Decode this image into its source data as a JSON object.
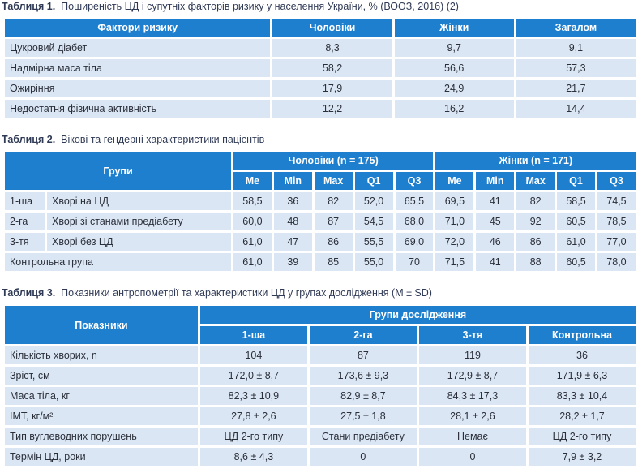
{
  "table1": {
    "caption_prefix": "Таблиця 1.",
    "caption": "Поширеність ЦД і супутніх факторів ризику у населення України, % (ВООЗ, 2016) (2)",
    "headers": [
      "Фактори ризику",
      "Чоловіки",
      "Жінки",
      "Загалом"
    ],
    "rows": [
      [
        "Цукровий діабет",
        "8,3",
        "9,7",
        "9,1"
      ],
      [
        "Надмірна маса тіла",
        "58,2",
        "56,6",
        "57,3"
      ],
      [
        "Ожиріння",
        "17,9",
        "24,9",
        "21,7"
      ],
      [
        "Недостатня фізична активність",
        "12,2",
        "16,2",
        "14,4"
      ]
    ]
  },
  "table2": {
    "caption_prefix": "Таблиця 2.",
    "caption": "Вікові та гендерні характеристики пацієнтів",
    "group_header": "Групи",
    "men_header": "Чоловіки (n = 175)",
    "women_header": "Жінки (n = 171)",
    "sub_headers": [
      "Me",
      "Min",
      "Max",
      "Q1",
      "Q3",
      "Me",
      "Min",
      "Max",
      "Q1",
      "Q3"
    ],
    "rows": [
      {
        "num": "1-ша",
        "name": "Хворі на ЦД",
        "values": [
          "58,5",
          "36",
          "82",
          "52,0",
          "65,5",
          "69,5",
          "41",
          "82",
          "58,5",
          "74,5"
        ]
      },
      {
        "num": "2-га",
        "name": "Хворі зі станами предіабету",
        "values": [
          "60,0",
          "48",
          "87",
          "54,5",
          "68,0",
          "71,0",
          "45",
          "92",
          "60,5",
          "78,5"
        ]
      },
      {
        "num": "3-тя",
        "name": "Хворі без ЦД",
        "values": [
          "61,0",
          "47",
          "86",
          "55,5",
          "69,0",
          "72,0",
          "46",
          "86",
          "61,0",
          "77,0"
        ]
      },
      {
        "num": "Контрольна група",
        "name": "",
        "values": [
          "61,0",
          "39",
          "85",
          "55,0",
          "70",
          "71,5",
          "41",
          "88",
          "60,5",
          "78,0"
        ]
      }
    ]
  },
  "table3": {
    "caption_prefix": "Таблиця 3.",
    "caption": "Показники антропометрії та характеристики ЦД у групах дослідження (M ± SD)",
    "row_header": "Показники",
    "group_header": "Групи дослідження",
    "sub_headers": [
      "1-ша",
      "2-га",
      "3-тя",
      "Контрольна"
    ],
    "rows": [
      [
        "Кількість хворих, n",
        "104",
        "87",
        "119",
        "36"
      ],
      [
        "Зріст, см",
        "172,0 ± 8,7",
        "173,6 ± 9,3",
        "172,9 ± 8,7",
        "171,9 ± 6,3"
      ],
      [
        "Маса тіла, кг",
        "82,3 ± 10,9",
        "82,9 ± 8,7",
        "84,3 ± 17,3",
        "83,3 ± 10,4"
      ],
      [
        "ІМТ, кг/м²",
        "27,8 ± 2,6",
        "27,5 ± 1,8",
        "28,1 ± 2,6",
        "28,2 ± 1,7"
      ],
      [
        "Тип вуглеводних порушень",
        "ЦД 2-го типу",
        "Стани предіабету",
        "Немає",
        "ЦД 2-го типу"
      ],
      [
        "Термін ЦД, роки",
        "8,6 ± 4,3",
        "0",
        "0",
        "7,9 ± 3,2"
      ]
    ]
  }
}
